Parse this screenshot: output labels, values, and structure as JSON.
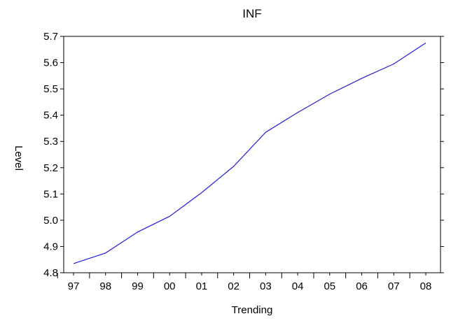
{
  "chart_data": {
    "type": "line",
    "title": "INF",
    "xlabel": "Trending",
    "ylabel": "Level",
    "categories": [
      "97",
      "98",
      "99",
      "00",
      "01",
      "02",
      "03",
      "04",
      "05",
      "06",
      "07",
      "08"
    ],
    "series": [
      {
        "values": [
          4.835,
          4.875,
          4.955,
          5.015,
          5.105,
          5.205,
          5.335,
          5.41,
          5.48,
          5.54,
          5.595,
          5.675
        ]
      }
    ],
    "yticks": [
      4.8,
      4.9,
      5.0,
      5.1,
      5.2,
      5.3,
      5.4,
      5.5,
      5.6,
      5.7
    ],
    "ylim": [
      4.8,
      5.7
    ],
    "grid": false,
    "colors": {
      "line": "#1f1fd6",
      "axes": "#000000"
    }
  }
}
